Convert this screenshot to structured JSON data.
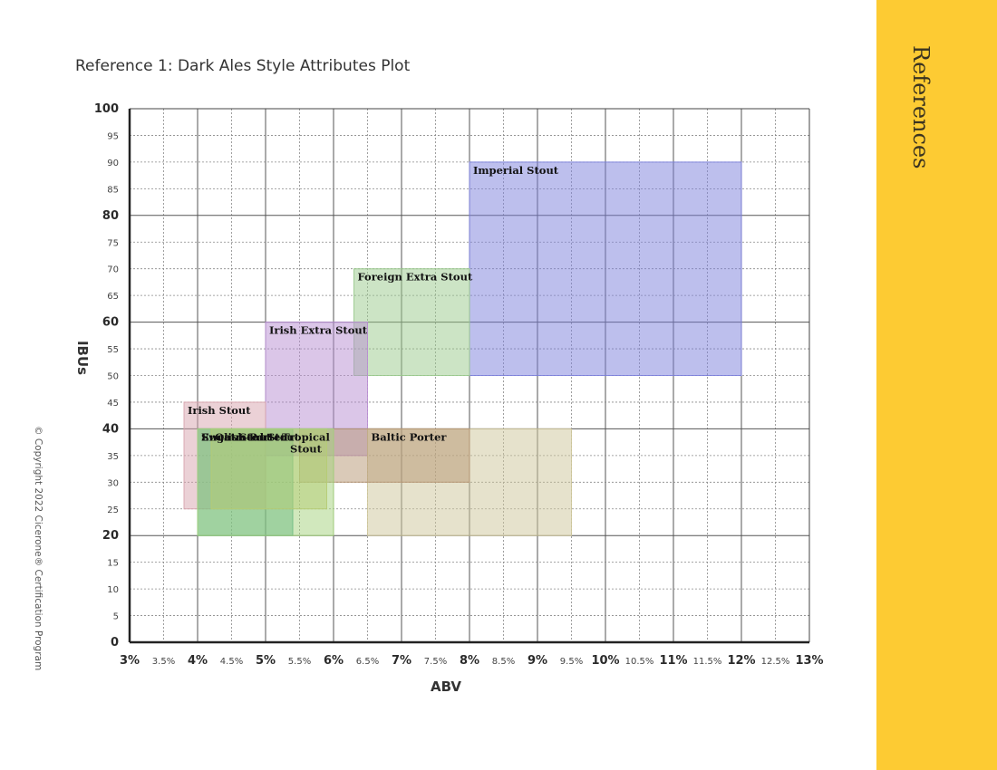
{
  "page": {
    "copyright": "© Copyright 2022 Cicerone® Certification Program",
    "side_tab": "References"
  },
  "chart_data": {
    "type": "range-box",
    "title": "Reference 1: Dark Ales Style Attributes Plot",
    "xlabel": "ABV",
    "ylabel": "IBUs",
    "xlim": [
      3,
      13
    ],
    "ylim": [
      0,
      100
    ],
    "x_ticks": [
      {
        "value": 3,
        "label": "3%",
        "major": true
      },
      {
        "value": 3.5,
        "label": "3.5%",
        "major": false
      },
      {
        "value": 4,
        "label": "4%",
        "major": true
      },
      {
        "value": 4.5,
        "label": "4.5%",
        "major": false
      },
      {
        "value": 5,
        "label": "5%",
        "major": true
      },
      {
        "value": 5.5,
        "label": "5.5%",
        "major": false
      },
      {
        "value": 6,
        "label": "6%",
        "major": true
      },
      {
        "value": 6.5,
        "label": "6.5%",
        "major": false
      },
      {
        "value": 7,
        "label": "7%",
        "major": true
      },
      {
        "value": 7.5,
        "label": "7.5%",
        "major": false
      },
      {
        "value": 8,
        "label": "8%",
        "major": true
      },
      {
        "value": 8.5,
        "label": "8.5%",
        "major": false
      },
      {
        "value": 9,
        "label": "9%",
        "major": true
      },
      {
        "value": 9.5,
        "label": "9.5%",
        "major": false
      },
      {
        "value": 10,
        "label": "10%",
        "major": true
      },
      {
        "value": 10.5,
        "label": "10.5%",
        "major": false
      },
      {
        "value": 11,
        "label": "11%",
        "major": true
      },
      {
        "value": 11.5,
        "label": "11.5%",
        "major": false
      },
      {
        "value": 12,
        "label": "12%",
        "major": true
      },
      {
        "value": 12.5,
        "label": "12.5%",
        "major": false
      },
      {
        "value": 13,
        "label": "13%",
        "major": true
      }
    ],
    "y_ticks": [
      {
        "value": 0,
        "label": "0",
        "major": true
      },
      {
        "value": 5,
        "label": "5",
        "major": false
      },
      {
        "value": 10,
        "label": "10",
        "major": false
      },
      {
        "value": 15,
        "label": "15",
        "major": false
      },
      {
        "value": 20,
        "label": "20",
        "major": true
      },
      {
        "value": 25,
        "label": "25",
        "major": false
      },
      {
        "value": 30,
        "label": "30",
        "major": false
      },
      {
        "value": 35,
        "label": "35",
        "major": false
      },
      {
        "value": 40,
        "label": "40",
        "major": true
      },
      {
        "value": 45,
        "label": "45",
        "major": false
      },
      {
        "value": 50,
        "label": "50",
        "major": false
      },
      {
        "value": 55,
        "label": "55",
        "major": false
      },
      {
        "value": 60,
        "label": "60",
        "major": true
      },
      {
        "value": 65,
        "label": "65",
        "major": false
      },
      {
        "value": 70,
        "label": "70",
        "major": false
      },
      {
        "value": 75,
        "label": "75",
        "major": false
      },
      {
        "value": 80,
        "label": "80",
        "major": true
      },
      {
        "value": 85,
        "label": "85",
        "major": false
      },
      {
        "value": 90,
        "label": "90",
        "major": false
      },
      {
        "value": 95,
        "label": "95",
        "major": false
      },
      {
        "value": 100,
        "label": "100",
        "major": true
      }
    ],
    "grid": true,
    "styles": [
      {
        "name": "Imperial Stout",
        "abv": [
          8,
          12
        ],
        "ibu": [
          50,
          90
        ],
        "color": "#7b7fdb"
      },
      {
        "name": "Foreign Extra Stout",
        "abv": [
          6.3,
          8
        ],
        "ibu": [
          50,
          70
        ],
        "color": "#99c98c"
      },
      {
        "name": "Irish Extra Stout",
        "abv": [
          5,
          6.5
        ],
        "ibu": [
          35,
          60
        ],
        "color": "#b88ed2"
      },
      {
        "name": "Irish Stout",
        "abv": [
          3.8,
          5
        ],
        "ibu": [
          25,
          45
        ],
        "color": "#d7a3ad"
      },
      {
        "name": "Baltic Porter",
        "abv": [
          6.5,
          9.5
        ],
        "ibu": [
          20,
          40
        ],
        "color": "#cdc59a"
      },
      {
        "name": "Tropical Stout",
        "abv": [
          5.5,
          8
        ],
        "ibu": [
          30,
          40
        ],
        "color": "#b69572"
      },
      {
        "name": "English Porter",
        "abv": [
          4,
          5.4
        ],
        "ibu": [
          20,
          40
        ],
        "color": "#3aa58c"
      },
      {
        "name": "Oatmeal Stout",
        "abv": [
          4.2,
          5.9
        ],
        "ibu": [
          25,
          40
        ],
        "color": "#c6c66b"
      },
      {
        "name": "Sweet Stout",
        "abv": [
          4,
          6
        ],
        "ibu": [
          20,
          40
        ],
        "color": "#a3d17b"
      }
    ]
  }
}
